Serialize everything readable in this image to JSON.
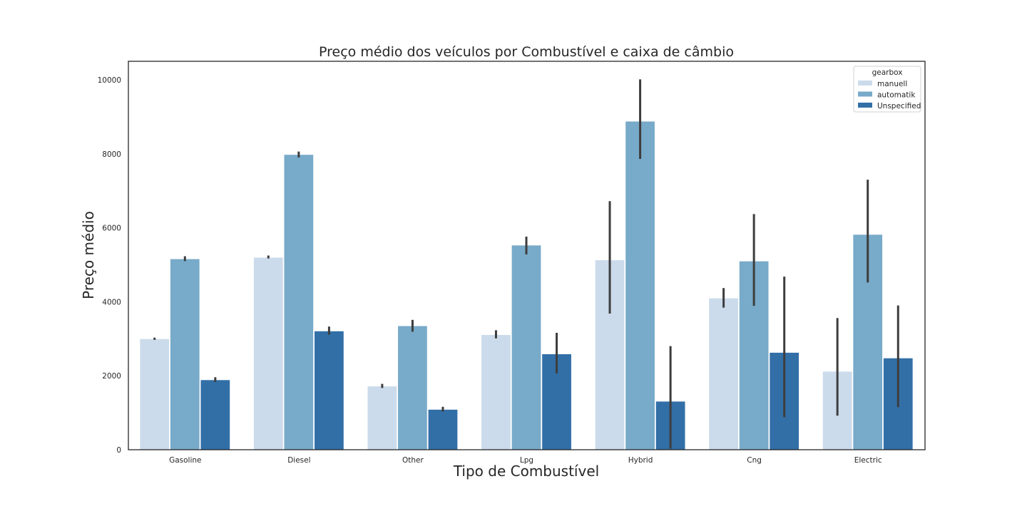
{
  "chart_data": {
    "type": "bar",
    "title": "Preço médio dos veículos por Combustível e caixa de câmbio",
    "xlabel": "Tipo de Combustível",
    "ylabel": "Preço médio",
    "categories": [
      "Gasoline",
      "Diesel",
      "Other",
      "Lpg",
      "Hybrid",
      "Cng",
      "Electric"
    ],
    "ylim": [
      0,
      10500
    ],
    "yticks": [
      0,
      2000,
      4000,
      6000,
      8000,
      10000
    ],
    "grid": false,
    "legend": {
      "title": "gearbox",
      "position": "top-right"
    },
    "series": [
      {
        "name": "manuell",
        "color": "#cbdbeb",
        "values": [
          3000,
          5200,
          1720,
          3110,
          5130,
          4100,
          2120
        ],
        "ci_low": [
          2970,
          5170,
          1670,
          3010,
          3680,
          3840,
          920
        ],
        "ci_high": [
          3030,
          5250,
          1780,
          3230,
          6720,
          4370,
          3560
        ]
      },
      {
        "name": "automatik",
        "color": "#78aac9",
        "values": [
          5160,
          7980,
          3350,
          5530,
          8880,
          5100,
          5820
        ],
        "ci_low": [
          5100,
          7900,
          3190,
          5280,
          7860,
          3890,
          4520
        ],
        "ci_high": [
          5230,
          8060,
          3510,
          5760,
          10010,
          6370,
          7300
        ]
      },
      {
        "name": "Unspecified",
        "color": "#326fa7",
        "values": [
          1890,
          3210,
          1090,
          2590,
          1310,
          2630,
          2480
        ],
        "ci_low": [
          1830,
          3110,
          1030,
          2060,
          30,
          880,
          1150
        ],
        "ci_high": [
          1960,
          3330,
          1160,
          3160,
          2800,
          4680,
          3900
        ]
      }
    ]
  }
}
